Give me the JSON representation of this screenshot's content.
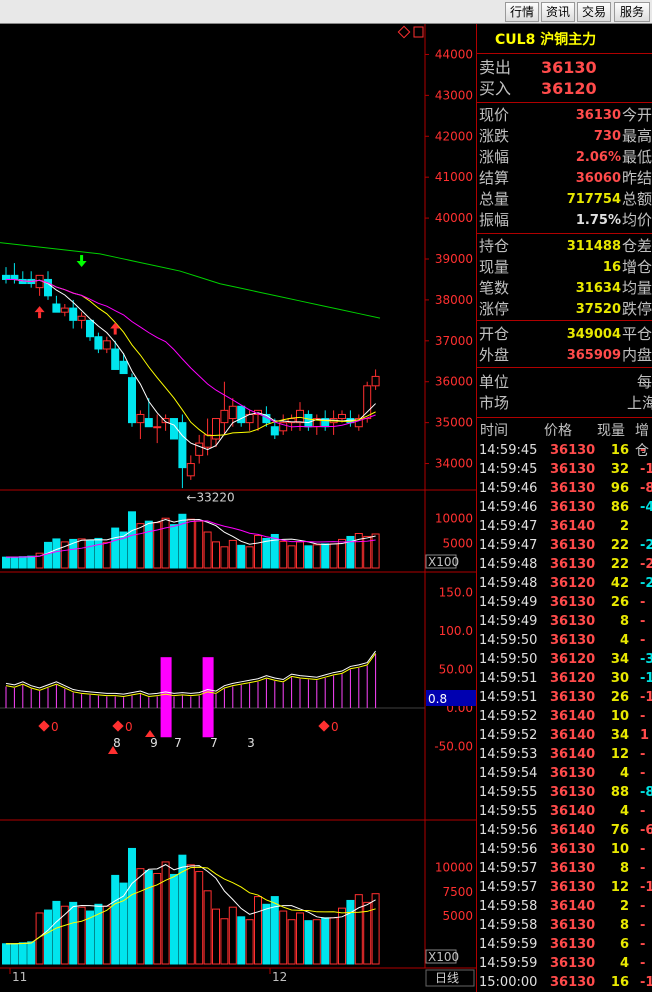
{
  "toolbar": {
    "buttons": [
      "行情",
      "资讯",
      "交易",
      "服务"
    ]
  },
  "chart": {
    "price_axis": [
      "44000",
      "43000",
      "42000",
      "41000",
      "40000",
      "39000",
      "38000",
      "37000",
      "36000",
      "35000",
      "34000"
    ],
    "low_label": "←33220",
    "volume_axis": [
      "10000",
      "5000"
    ],
    "volume_unit": "X100",
    "macd_axis": [
      "150.0",
      "100.0",
      "50.00",
      "0.00",
      "-50.00"
    ],
    "macd_current": "0.8",
    "macd_signals": [
      "0",
      "0",
      "0",
      "8",
      "9",
      "7",
      "7",
      "3"
    ],
    "oi_axis": [
      "10000",
      "7500",
      "5000"
    ],
    "oi_unit": "X100",
    "x_axis": [
      "11",
      "12"
    ],
    "period_label": "日线",
    "colors": {
      "up": "#ff3030",
      "down": "#00e5ee",
      "ma5": "#ffffff",
      "ma10": "#ffff00",
      "ma20": "#ff00ff",
      "ma60": "#00d000",
      "frame": "#b00000"
    }
  },
  "quote": {
    "code": "CUL8",
    "name": "沪铜主力",
    "sell_label": "卖出",
    "sell_price": "36130",
    "buy_label": "买入",
    "buy_price": "36120",
    "rows": [
      {
        "label": "现价",
        "value": "36130",
        "label2": "今开",
        "color": "red"
      },
      {
        "label": "涨跌",
        "value": "730",
        "label2": "最高",
        "color": "red"
      },
      {
        "label": "涨幅",
        "value": "2.06%",
        "label2": "最低",
        "color": "red"
      },
      {
        "label": "结算",
        "value": "36060",
        "label2": "昨结",
        "color": "red"
      },
      {
        "label": "总量",
        "value": "717754",
        "label2": "总额",
        "color": "yel"
      },
      {
        "label": "振幅",
        "value": "1.75%",
        "label2": "均价",
        "color": "wht"
      }
    ],
    "rows2": [
      {
        "label": "持仓",
        "value": "311488",
        "label2": "仓差",
        "color": "yel"
      },
      {
        "label": "现量",
        "value": "16",
        "label2": "增仓",
        "color": "yel"
      },
      {
        "label": "笔数",
        "value": "31634",
        "label2": "均量",
        "color": "yel"
      },
      {
        "label": "涨停",
        "value": "37520",
        "label2": "跌停",
        "color": "yel"
      }
    ],
    "rows3": [
      {
        "label": "开仓",
        "value": "349004",
        "label2": "平仓",
        "color": "yel"
      },
      {
        "label": "外盘",
        "value": "365909",
        "label2": "内盘",
        "color": "red"
      }
    ],
    "unit_label": "单位",
    "unit_value": "每",
    "market_label": "市场",
    "market_value": "上海",
    "tick_headers": {
      "time": "时间",
      "price": "价格",
      "qty": "现量",
      "chg": "增仓"
    },
    "ticks": [
      {
        "time": "14:59:45",
        "price": "36130",
        "qty": "16",
        "chg": "-",
        "pc": "red",
        "dc": "red"
      },
      {
        "time": "14:59:45",
        "price": "36130",
        "qty": "32",
        "chg": "-1",
        "pc": "red",
        "dc": "red"
      },
      {
        "time": "14:59:46",
        "price": "36130",
        "qty": "96",
        "chg": "-8",
        "pc": "red",
        "dc": "red"
      },
      {
        "time": "14:59:46",
        "price": "36130",
        "qty": "86",
        "chg": "-4",
        "pc": "red",
        "dc": "cyan"
      },
      {
        "time": "14:59:47",
        "price": "36140",
        "qty": "2",
        "chg": "",
        "pc": "red",
        "dc": "red"
      },
      {
        "time": "14:59:47",
        "price": "36130",
        "qty": "22",
        "chg": "-2",
        "pc": "red",
        "dc": "cyan"
      },
      {
        "time": "14:59:48",
        "price": "36130",
        "qty": "22",
        "chg": "-2",
        "pc": "red",
        "dc": "red"
      },
      {
        "time": "14:59:48",
        "price": "36120",
        "qty": "42",
        "chg": "-2",
        "pc": "red",
        "dc": "cyan"
      },
      {
        "time": "14:59:49",
        "price": "36130",
        "qty": "26",
        "chg": "-",
        "pc": "red",
        "dc": "red"
      },
      {
        "time": "14:59:49",
        "price": "36130",
        "qty": "8",
        "chg": "-",
        "pc": "red",
        "dc": "red"
      },
      {
        "time": "14:59:50",
        "price": "36130",
        "qty": "4",
        "chg": "-",
        "pc": "red",
        "dc": "red"
      },
      {
        "time": "14:59:50",
        "price": "36120",
        "qty": "34",
        "chg": "-3",
        "pc": "red",
        "dc": "cyan"
      },
      {
        "time": "14:59:51",
        "price": "36120",
        "qty": "30",
        "chg": "-1",
        "pc": "red",
        "dc": "cyan"
      },
      {
        "time": "14:59:51",
        "price": "36130",
        "qty": "26",
        "chg": "-1",
        "pc": "red",
        "dc": "red"
      },
      {
        "time": "14:59:52",
        "price": "36140",
        "qty": "10",
        "chg": "-",
        "pc": "red",
        "dc": "red"
      },
      {
        "time": "14:59:52",
        "price": "36140",
        "qty": "34",
        "chg": "1",
        "pc": "red",
        "dc": "red"
      },
      {
        "time": "14:59:53",
        "price": "36140",
        "qty": "12",
        "chg": "-",
        "pc": "red",
        "dc": "red"
      },
      {
        "time": "14:59:54",
        "price": "36130",
        "qty": "4",
        "chg": "-",
        "pc": "red",
        "dc": "red"
      },
      {
        "time": "14:59:55",
        "price": "36130",
        "qty": "88",
        "chg": "-8",
        "pc": "red",
        "dc": "cyan"
      },
      {
        "time": "14:59:55",
        "price": "36140",
        "qty": "4",
        "chg": "-",
        "pc": "red",
        "dc": "red"
      },
      {
        "time": "14:59:56",
        "price": "36140",
        "qty": "76",
        "chg": "-6",
        "pc": "red",
        "dc": "red"
      },
      {
        "time": "14:59:56",
        "price": "36130",
        "qty": "10",
        "chg": "-",
        "pc": "red",
        "dc": "red"
      },
      {
        "time": "14:59:57",
        "price": "36130",
        "qty": "8",
        "chg": "-",
        "pc": "red",
        "dc": "red"
      },
      {
        "time": "14:59:57",
        "price": "36130",
        "qty": "12",
        "chg": "-1",
        "pc": "red",
        "dc": "red"
      },
      {
        "time": "14:59:58",
        "price": "36140",
        "qty": "2",
        "chg": "-",
        "pc": "red",
        "dc": "red"
      },
      {
        "time": "14:59:58",
        "price": "36130",
        "qty": "8",
        "chg": "-",
        "pc": "red",
        "dc": "red"
      },
      {
        "time": "14:59:59",
        "price": "36130",
        "qty": "6",
        "chg": "-",
        "pc": "red",
        "dc": "red"
      },
      {
        "time": "14:59:59",
        "price": "36130",
        "qty": "4",
        "chg": "-",
        "pc": "red",
        "dc": "red"
      },
      {
        "time": "15:00:00",
        "price": "36130",
        "qty": "16",
        "chg": "-1",
        "pc": "red",
        "dc": "red"
      }
    ]
  },
  "chart_data": {
    "type": "candlestick",
    "price_axis": {
      "min": 33500,
      "max": 44500,
      "ticks": [
        34000,
        35000,
        36000,
        37000,
        38000,
        39000,
        40000,
        41000,
        42000,
        43000,
        44000
      ]
    },
    "candles": [
      {
        "o": 38600,
        "h": 38800,
        "l": 38400,
        "c": 38500
      },
      {
        "o": 38600,
        "h": 38900,
        "l": 38400,
        "c": 38500
      },
      {
        "o": 38500,
        "h": 38700,
        "l": 38400,
        "c": 38400
      },
      {
        "o": 38500,
        "h": 38700,
        "l": 38300,
        "c": 38400
      },
      {
        "o": 38300,
        "h": 38600,
        "l": 38100,
        "c": 38600
      },
      {
        "o": 38500,
        "h": 38700,
        "l": 38000,
        "c": 38100
      },
      {
        "o": 37900,
        "h": 38100,
        "l": 37700,
        "c": 37700
      },
      {
        "o": 37700,
        "h": 37900,
        "l": 37600,
        "c": 37800
      },
      {
        "o": 37800,
        "h": 38000,
        "l": 37300,
        "c": 37500
      },
      {
        "o": 37500,
        "h": 37700,
        "l": 37300,
        "c": 37600
      },
      {
        "o": 37500,
        "h": 37500,
        "l": 37000,
        "c": 37100
      },
      {
        "o": 37100,
        "h": 37200,
        "l": 36700,
        "c": 36800
      },
      {
        "o": 36800,
        "h": 37100,
        "l": 36700,
        "c": 37000
      },
      {
        "o": 36800,
        "h": 37000,
        "l": 36300,
        "c": 36300
      },
      {
        "o": 36500,
        "h": 36700,
        "l": 36200,
        "c": 36200
      },
      {
        "o": 36100,
        "h": 36200,
        "l": 34900,
        "c": 35000
      },
      {
        "o": 35000,
        "h": 35300,
        "l": 34600,
        "c": 35200
      },
      {
        "o": 35100,
        "h": 35600,
        "l": 34900,
        "c": 34900
      },
      {
        "o": 34900,
        "h": 35200,
        "l": 34500,
        "c": 34900
      },
      {
        "o": 35000,
        "h": 35200,
        "l": 34800,
        "c": 35100
      },
      {
        "o": 35100,
        "h": 35100,
        "l": 34600,
        "c": 34600
      },
      {
        "o": 35000,
        "h": 35200,
        "l": 33400,
        "c": 33900
      },
      {
        "o": 33700,
        "h": 34200,
        "l": 33600,
        "c": 34000
      },
      {
        "o": 34200,
        "h": 34700,
        "l": 34000,
        "c": 34500
      },
      {
        "o": 34400,
        "h": 35100,
        "l": 34200,
        "c": 34700
      },
      {
        "o": 34600,
        "h": 35100,
        "l": 34400,
        "c": 35100
      },
      {
        "o": 35000,
        "h": 36000,
        "l": 34700,
        "c": 35300
      },
      {
        "o": 35100,
        "h": 35600,
        "l": 34900,
        "c": 35400
      },
      {
        "o": 35400,
        "h": 35400,
        "l": 34900,
        "c": 35000
      },
      {
        "o": 35000,
        "h": 35300,
        "l": 34800,
        "c": 35200
      },
      {
        "o": 35200,
        "h": 35300,
        "l": 34800,
        "c": 35300
      },
      {
        "o": 35200,
        "h": 35400,
        "l": 34900,
        "c": 35000
      },
      {
        "o": 34900,
        "h": 35100,
        "l": 34600,
        "c": 34700
      },
      {
        "o": 34800,
        "h": 35200,
        "l": 34700,
        "c": 35000
      },
      {
        "o": 35000,
        "h": 35200,
        "l": 34800,
        "c": 35100
      },
      {
        "o": 35000,
        "h": 35500,
        "l": 34800,
        "c": 35300
      },
      {
        "o": 35200,
        "h": 35300,
        "l": 34800,
        "c": 34900
      },
      {
        "o": 34900,
        "h": 35200,
        "l": 34700,
        "c": 35100
      },
      {
        "o": 35100,
        "h": 35300,
        "l": 34800,
        "c": 34900
      },
      {
        "o": 35000,
        "h": 35300,
        "l": 34700,
        "c": 35100
      },
      {
        "o": 35100,
        "h": 35300,
        "l": 35000,
        "c": 35200
      },
      {
        "o": 35100,
        "h": 35300,
        "l": 34900,
        "c": 35000
      },
      {
        "o": 34900,
        "h": 35200,
        "l": 34800,
        "c": 35100
      },
      {
        "o": 35100,
        "h": 36000,
        "l": 35000,
        "c": 35900
      },
      {
        "o": 35900,
        "h": 36300,
        "l": 35800,
        "c": 36130
      }
    ],
    "ma_lines": {
      "ma60": [
        39400,
        39400,
        39400,
        39400,
        39400,
        39400,
        39350,
        39300,
        39250,
        39200,
        39100,
        39000,
        38950,
        38900,
        38850,
        38800,
        38750,
        38700,
        38650,
        38600
      ],
      "volume": [
        2200,
        2200,
        2300,
        2400,
        3000,
        5200,
        5900,
        5300,
        5800,
        5900,
        5600,
        6000,
        5200,
        8100,
        7300,
        11400,
        9000,
        9500,
        9200,
        10100,
        8800,
        10900,
        9900,
        9500,
        7300,
        5300,
        4300,
        5600,
        4600,
        4300,
        6600,
        6000,
        6800,
        5400,
        4500,
        5300,
        4500,
        4700,
        4900,
        4900,
        5800,
        6400,
        7000,
        6400,
        6900
      ]
    },
    "macd_hist": [
      28,
      26,
      30,
      25,
      22,
      26,
      30,
      25,
      20,
      18,
      17,
      16,
      15,
      15,
      14,
      16,
      18,
      14,
      15,
      17,
      15,
      16,
      15,
      16,
      20,
      18,
      25,
      28,
      30,
      32,
      34,
      38,
      35,
      33,
      40,
      38,
      37,
      36,
      39,
      42,
      44,
      50,
      52,
      55,
      70
    ],
    "macd_highlight": [
      19,
      24
    ],
    "oi": [
      2100,
      2100,
      2200,
      2300,
      5300,
      5600,
      6500,
      6000,
      6400,
      5900,
      5500,
      6200,
      6000,
      9200,
      8400,
      12000,
      9900,
      9700,
      9400,
      10600,
      9300,
      11300,
      10300,
      9600,
      7600,
      5700,
      4700,
      5900,
      4900,
      4600,
      7000,
      6200,
      7000,
      5500,
      4600,
      5300,
      4500,
      4600,
      4800,
      4800,
      5800,
      6600,
      7200,
      6400,
      7300
    ],
    "xlabel": "",
    "ylabel": ""
  }
}
